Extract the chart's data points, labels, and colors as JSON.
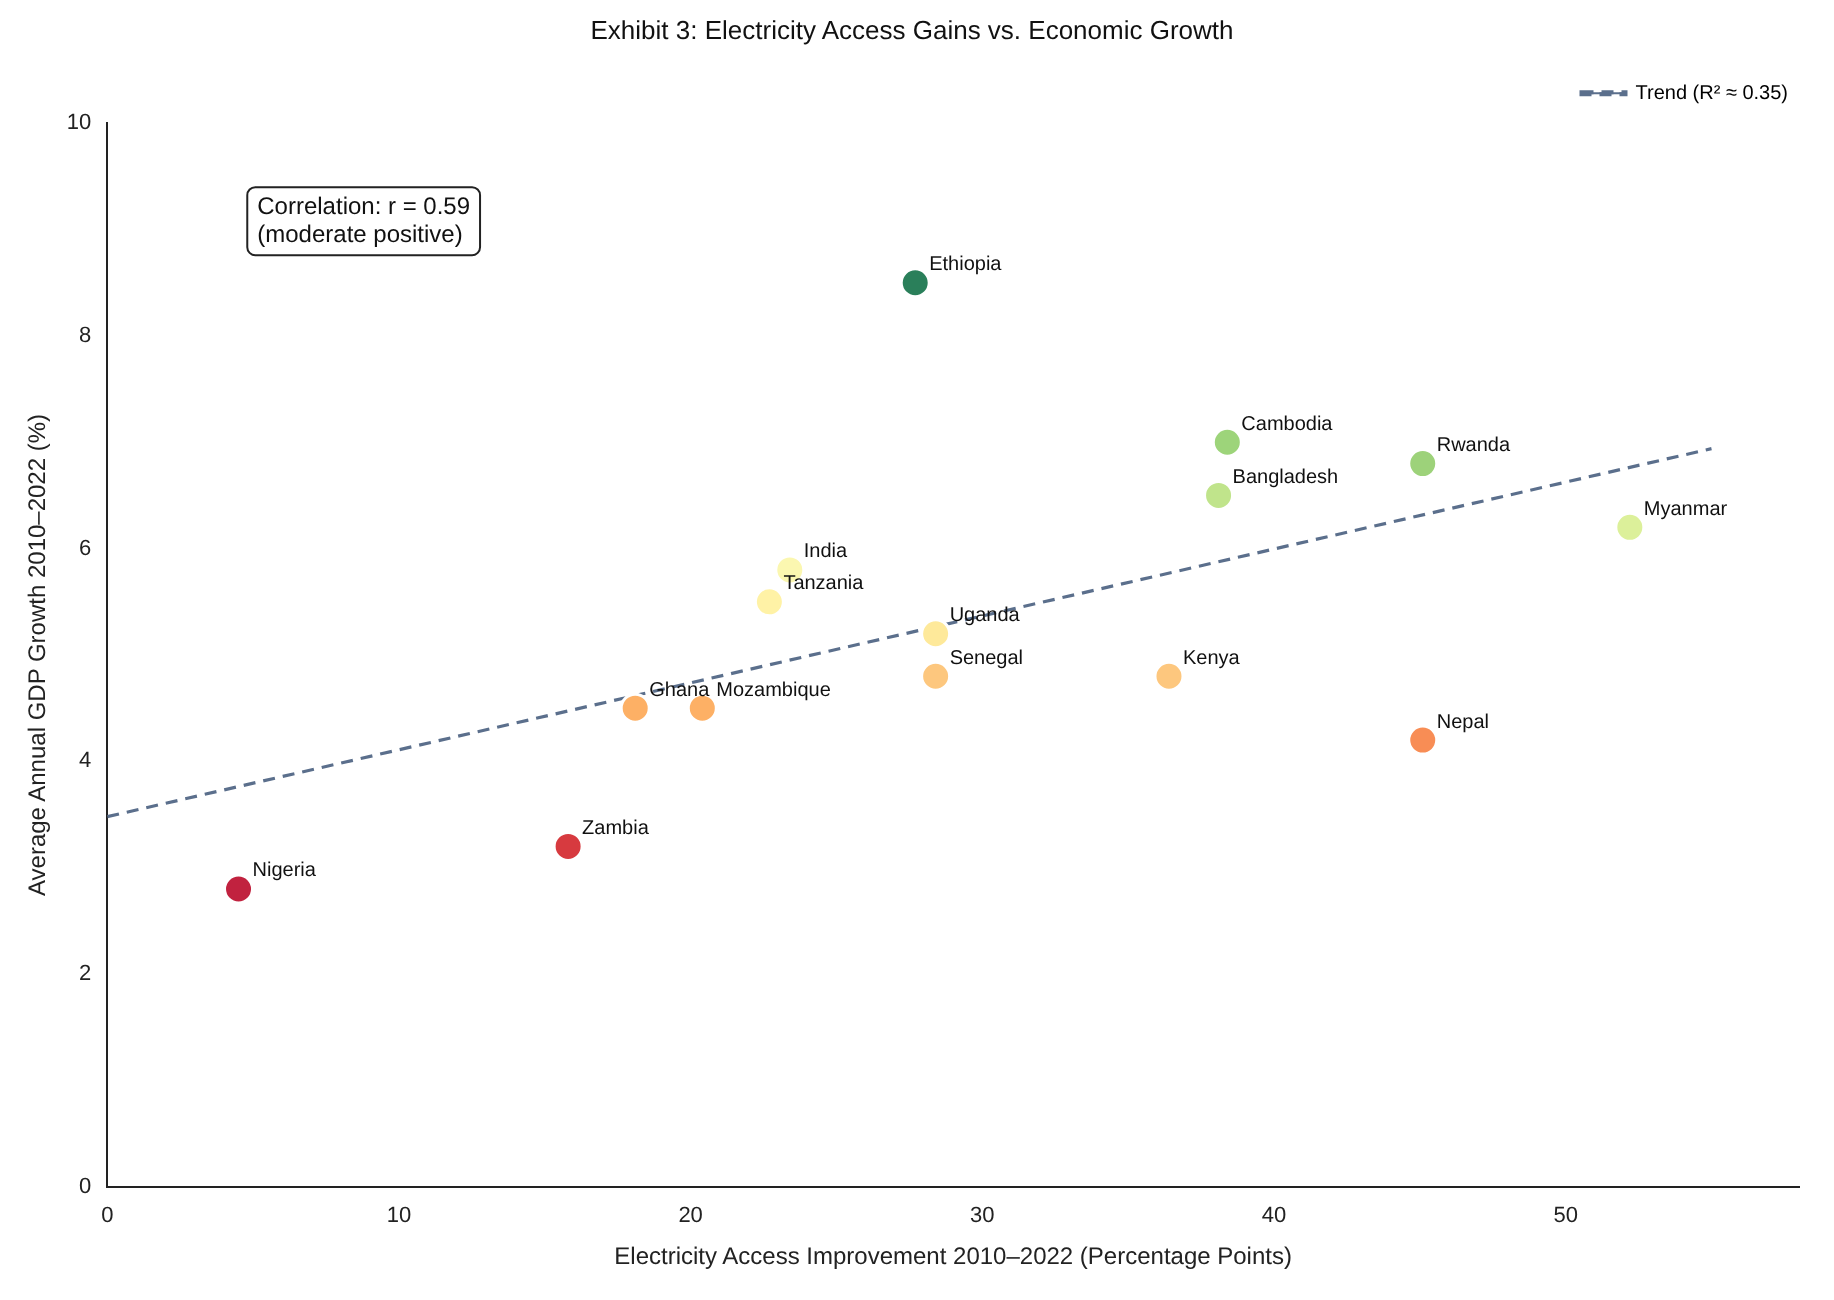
{
  "chart_data": {
    "type": "scatter",
    "title": "Exhibit 3: Electricity Access Gains vs. Economic Growth",
    "xlabel": "Electricity Access Improvement 2010–2022 (Percentage Points)",
    "ylabel": "Average Annual GDP Growth 2010–2022 (%)",
    "xlim": [
      0,
      58
    ],
    "xticks": [
      0,
      10,
      20,
      30,
      40,
      50
    ],
    "ylim": [
      0,
      10
    ],
    "yticks": [
      0,
      2,
      4,
      6,
      8,
      10
    ],
    "grid": false,
    "legend": "top right",
    "marker": "circle",
    "series": [
      {
        "type": "scatter",
        "x": [
          4.5,
          15.8,
          18.1,
          20.4,
          22.7,
          23.4,
          27.7,
          28.4,
          28.4,
          36.4,
          38.1,
          38.4,
          45.1,
          45.1,
          52.2
        ],
        "values": [
          2.8,
          3.2,
          4.5,
          4.5,
          5.5,
          5.8,
          8.5,
          5.2,
          4.8,
          4.8,
          6.5,
          7.0,
          6.8,
          4.2,
          6.2
        ],
        "colors": [
          "#c1223f",
          "#d73a3f",
          "#fdb065",
          "#fdb065",
          "#fff2a6",
          "#fbf7b0",
          "#2a7f5a",
          "#fee99a",
          "#fdc77e",
          "#fdc77e",
          "#c0e48b",
          "#9dd47a",
          "#9dd27a",
          "#f88d55",
          "#dcf09a"
        ]
      },
      {
        "type": "line",
        "name": "Trend (R² ≈ 0.35)",
        "color": "#5b6f8c",
        "line_style": "dashed",
        "marker": "none",
        "x": [
          0,
          55
        ],
        "values": [
          3.48,
          6.94
        ]
      }
    ],
    "annotations": [
      "Correlation: r = 0.59\n(moderate positive)",
      {
        "text": "Nigeria",
        "x": 4.5,
        "y": 2.8
      },
      {
        "text": "Zambia",
        "x": 15.8,
        "y": 3.2
      },
      {
        "text": "Ghana",
        "x": 18.1,
        "y": 4.5
      },
      {
        "text": "Mozambique",
        "x": 20.4,
        "y": 4.5
      },
      {
        "text": "Tanzania",
        "x": 22.7,
        "y": 5.5
      },
      {
        "text": "India",
        "x": 23.4,
        "y": 5.8
      },
      {
        "text": "Ethiopia",
        "x": 27.7,
        "y": 8.5
      },
      {
        "text": "Uganda",
        "x": 28.4,
        "y": 5.2
      },
      {
        "text": "Senegal",
        "x": 28.4,
        "y": 4.8
      },
      {
        "text": "Kenya",
        "x": 36.4,
        "y": 4.8
      },
      {
        "text": "Bangladesh",
        "x": 38.1,
        "y": 6.5
      },
      {
        "text": "Cambodia",
        "x": 38.4,
        "y": 7.0
      },
      {
        "text": "Rwanda",
        "x": 45.1,
        "y": 6.8
      },
      {
        "text": "Nepal",
        "x": 45.1,
        "y": 4.2
      },
      {
        "text": "Myanmar",
        "x": 52.2,
        "y": 6.2
      }
    ]
  }
}
